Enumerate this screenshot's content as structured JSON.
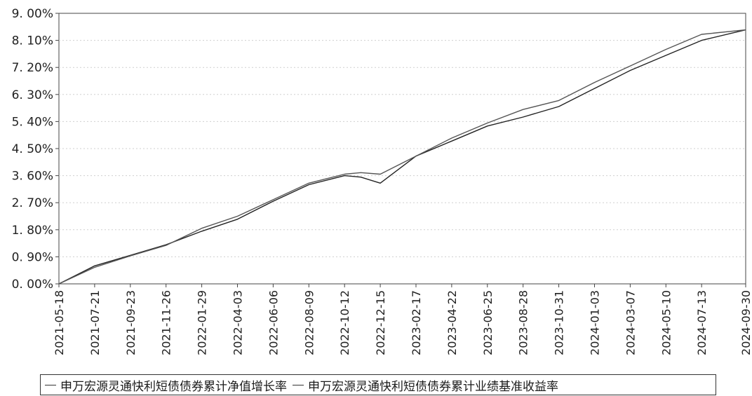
{
  "chart_data": {
    "type": "line",
    "title": "",
    "xlabel": "",
    "ylabel": "",
    "ylim": [
      0,
      9
    ],
    "y_unit": "%",
    "grid": true,
    "legend_placement": "bottom",
    "y_ticks": [
      "0. 00%",
      "0. 90%",
      "1. 80%",
      "2. 70%",
      "3. 60%",
      "4. 50%",
      "5. 40%",
      "6. 30%",
      "7. 20%",
      "8. 10%",
      "9. 00%"
    ],
    "x_ticks": [
      "2021-05-18",
      "2021-07-21",
      "2021-09-23",
      "2021-11-26",
      "2022-01-29",
      "2022-04-03",
      "2022-06-06",
      "2022-08-09",
      "2022-10-12",
      "2022-12-15",
      "2023-02-17",
      "2023-04-22",
      "2023-06-25",
      "2023-08-28",
      "2023-10-31",
      "2024-01-03",
      "2024-03-07",
      "2024-05-10",
      "2024-07-13",
      "2024-09-30"
    ],
    "x": [
      "2021-05-18",
      "2021-07-21",
      "2021-09-23",
      "2021-11-26",
      "2022-01-29",
      "2022-04-03",
      "2022-06-06",
      "2022-08-09",
      "2022-10-12",
      "2022-11-10",
      "2022-12-15",
      "2023-02-17",
      "2023-04-22",
      "2023-06-25",
      "2023-08-28",
      "2023-10-31",
      "2024-01-03",
      "2024-03-07",
      "2024-05-10",
      "2024-07-13",
      "2024-09-30"
    ],
    "series": [
      {
        "name": "申万宏源灵通快利短债债券累计净值增长率",
        "color": "#222222",
        "values": [
          0.0,
          0.6,
          0.95,
          1.3,
          1.75,
          2.15,
          2.75,
          3.3,
          3.6,
          3.55,
          3.35,
          4.25,
          4.75,
          5.25,
          5.55,
          5.9,
          6.5,
          7.1,
          7.6,
          8.1,
          8.45
        ]
      },
      {
        "name": "申万宏源灵通快利短债债券累计业绩基准收益率",
        "color": "#555555",
        "values": [
          0.0,
          0.55,
          0.93,
          1.28,
          1.85,
          2.25,
          2.8,
          3.35,
          3.65,
          3.7,
          3.65,
          4.25,
          4.85,
          5.35,
          5.8,
          6.1,
          6.7,
          7.25,
          7.8,
          8.3,
          8.45
        ]
      }
    ]
  },
  "legend": {
    "items": [
      {
        "label": "申万宏源灵通快利短债债券累计净值增长率"
      },
      {
        "label": "申万宏源灵通快利短债债券累计业绩基准收益率"
      }
    ]
  }
}
